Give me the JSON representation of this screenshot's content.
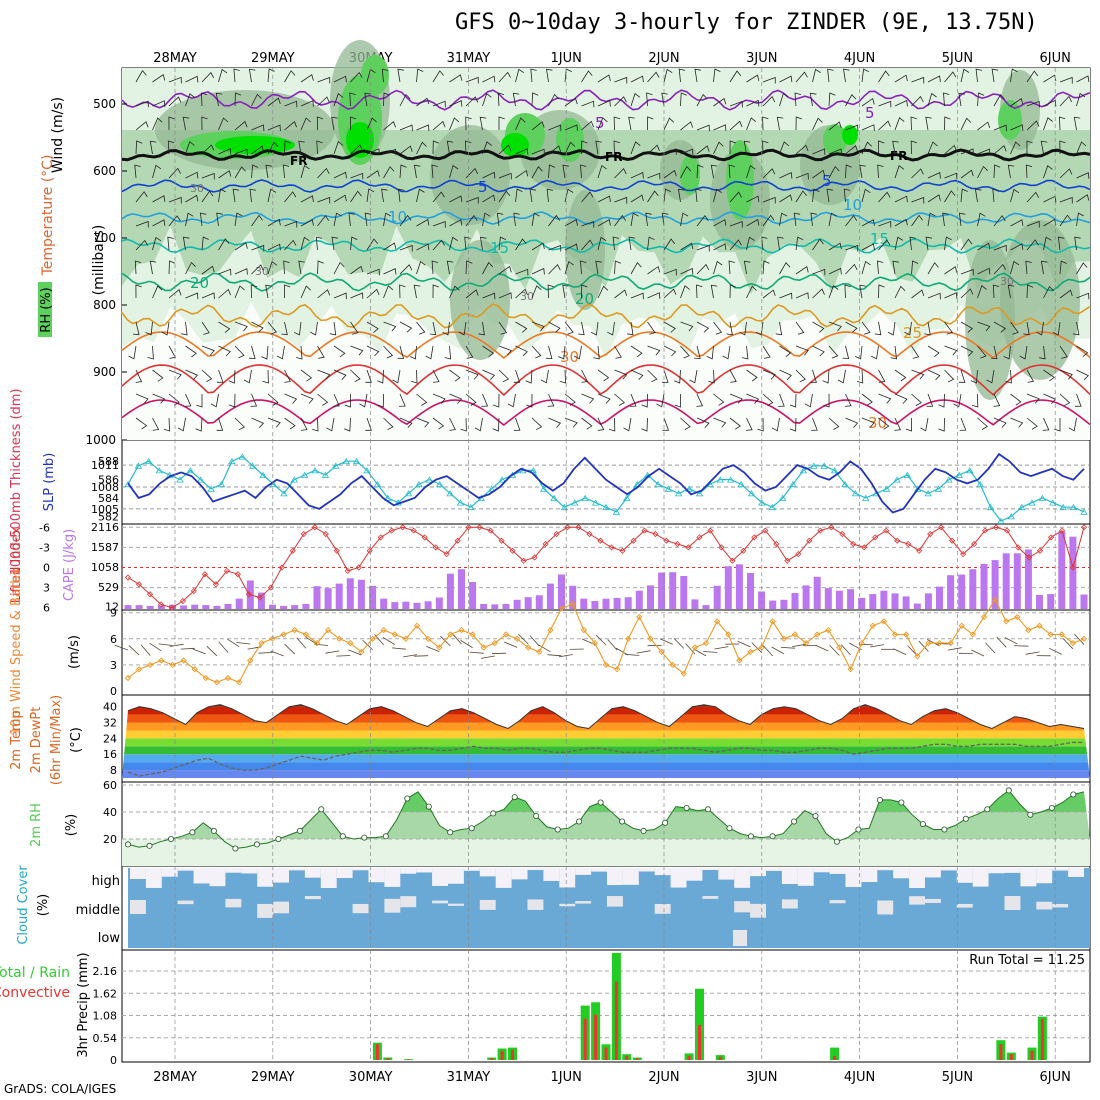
{
  "title": "GFS 0~10day 3-hourly for ZINDER (9E, 13.75N)",
  "credit": "GrADS: COLA/IGES",
  "colors": {
    "rh_light": "#e3f3e3",
    "rh_mid": "#b4d7b4",
    "rh_dark": "#93b893",
    "rh_green": "#5ed05e",
    "rh_bright": "#00e000",
    "thickness": "#22bbcc",
    "slp": "#2233bb",
    "lifted_index": "#dd3333",
    "cape": "#bb77ee",
    "wind10m": "#ee9922",
    "barb": "#554433",
    "rh2m": "#55cc55",
    "cloud_blue": "#6aa9d6",
    "precip_total": "#22cc22",
    "precip_conv": "#ee3333",
    "axis_label_cyan": "#22aacc"
  },
  "time_axis": {
    "labels": [
      "28MAY",
      "29MAY",
      "30MAY",
      "31MAY",
      "1JUN",
      "2JUN",
      "3JUN",
      "4JUN",
      "5JUN",
      "6JUN"
    ]
  },
  "panels": {
    "upper_air": {
      "ylabel_rh": "RH (%)",
      "ylabel_temp": "Temperature (°C)",
      "ylabel_wind": "Wind (m/s)",
      "ylabel_units": "(millibars)",
      "yticks": [
        "500",
        "600",
        "700",
        "800",
        "900",
        "1000"
      ],
      "fr_label": "FR",
      "isotherm_labels": [
        "5",
        "10",
        "15",
        "20",
        "25",
        "30"
      ],
      "rh_labels": [
        "30",
        "50"
      ]
    },
    "thickness_slp": {
      "ylabel_thick": "1000-500mb Thickness (dm)",
      "ylabel_slp": "SLP (mb)",
      "left_ticks": [
        "588",
        "586",
        "584",
        "582"
      ],
      "right_ticks": [
        "1011",
        "1008",
        "1005"
      ]
    },
    "li_cape": {
      "ylabel_li": "Lifted Index",
      "ylabel_cape": "CAPE (J/kg)",
      "left_ticks": [
        "-6",
        "-3",
        "0",
        "3",
        "6"
      ],
      "right_ticks": [
        "2116",
        "1587",
        "1058",
        "529",
        "12"
      ]
    },
    "wind10m": {
      "ylabel": "10m Wind Speed & Barbs",
      "units": "(m/s)",
      "ticks": [
        "9",
        "6",
        "3",
        "0"
      ]
    },
    "temp2m": {
      "ylabel1": "2m Temp",
      "ylabel2": "2m DewPt",
      "ylabel3": "(6hr Min/Max)",
      "units": "(°C)",
      "ticks": [
        "40",
        "32",
        "24",
        "16",
        "8"
      ]
    },
    "rh2m": {
      "ylabel": "2m RH",
      "units": "(%)",
      "ticks": [
        "60",
        "40",
        "20"
      ]
    },
    "cloud": {
      "ylabel": "Cloud Cover",
      "units": "(%)",
      "levels": [
        "high",
        "middle",
        "low"
      ]
    },
    "precip": {
      "ylabel1": "3hr Precip (mm)",
      "legend_total": "Total / Rain",
      "legend_conv": "Convective",
      "run_total": "Run Total = 11.25",
      "ticks": [
        "2.16",
        "1.62",
        "1.08",
        "0.54",
        "0"
      ]
    }
  },
  "chart_data": [
    {
      "type": "line",
      "title": "1000-500mb Thickness / SLP",
      "series": [
        {
          "name": "1000-500mb Thickness (dm)",
          "values": [
            585.5,
            587.5,
            588,
            587,
            586.5,
            586,
            587,
            586,
            585,
            585.5,
            588,
            588.5,
            587.5,
            586.5,
            585.5,
            584.5,
            586,
            586.5,
            587,
            586.5,
            587.5,
            588,
            588,
            587,
            585.5,
            584,
            583.5,
            584.5,
            585.5,
            586,
            585.5,
            584.5,
            583.5,
            583,
            584,
            585,
            586,
            586.5,
            587,
            587,
            585,
            584,
            583,
            583.5,
            584,
            583.5,
            583,
            582.5,
            584,
            585.5,
            586.5,
            585.5,
            585,
            584.5,
            585,
            584.5,
            585.5,
            586,
            586,
            585.5,
            584.5,
            583.5,
            583,
            584,
            585.5,
            587,
            587.5,
            587.5,
            587,
            585.5,
            584.5,
            584,
            584.5,
            585,
            586,
            586.5,
            585,
            584.5,
            585,
            586,
            586.5,
            587,
            585.5,
            583,
            581.5,
            582,
            583,
            583.5,
            584,
            583.5,
            583,
            583,
            582.5
          ]
        },
        {
          "name": "SLP (mb)",
          "values": [
            1008.5,
            1006.5,
            1007,
            1008.5,
            1009.5,
            1010,
            1009.5,
            1008,
            1006,
            1006.5,
            1007,
            1007.5,
            1006.5,
            1008,
            1009,
            1008.5,
            1007,
            1005.5,
            1005,
            1006,
            1007,
            1008.5,
            1009.5,
            1008,
            1006.5,
            1005.5,
            1006,
            1006.5,
            1008,
            1009,
            1009.5,
            1008.5,
            1007.5,
            1006.5,
            1007,
            1008,
            1009.5,
            1010.5,
            1010,
            1008.5,
            1007.5,
            1008.5,
            1010.5,
            1012,
            1010.5,
            1009,
            1008,
            1007,
            1008,
            1009.5,
            1010.5,
            1009.5,
            1008.5,
            1007,
            1007.5,
            1009,
            1010.5,
            1011,
            1010,
            1008.5,
            1007.5,
            1008,
            1009.5,
            1011,
            1010.5,
            1009.5,
            1009,
            1010,
            1011.5,
            1010.5,
            1008.5,
            1006,
            1004.5,
            1005,
            1007,
            1009,
            1010.5,
            1010,
            1009,
            1008.5,
            1009,
            1010.5,
            1012.5,
            1011.5,
            1010,
            1009.5,
            1010,
            1010.5,
            1009.5,
            1009,
            1010.5
          ]
        }
      ]
    },
    {
      "type": "bar",
      "title": "CAPE (J/kg) and Lifted Index",
      "series": [
        {
          "name": "CAPE (J/kg)",
          "values": [
            50,
            50,
            30,
            40,
            60,
            40,
            60,
            50,
            30,
            80,
            220,
            700,
            380,
            60,
            30,
            50,
            80,
            550,
            500,
            620,
            760,
            720,
            560,
            220,
            130,
            140,
            110,
            150,
            250,
            880,
            1000,
            660,
            80,
            70,
            80,
            190,
            260,
            310,
            620,
            860,
            560,
            220,
            160,
            220,
            240,
            260,
            430,
            570,
            910,
            920,
            820,
            200,
            50,
            560,
            1080,
            1130,
            900,
            410,
            170,
            190,
            370,
            570,
            800,
            500,
            430,
            470,
            240,
            340,
            430,
            360,
            280,
            90,
            360,
            540,
            840,
            860,
            1000,
            1140,
            1240,
            1420,
            1420,
            1520,
            320,
            340,
            2000,
            1860,
            330
          ]
        },
        {
          "name": "Lifted Index",
          "values": [
            1.5,
            2.5,
            4,
            5.5,
            6,
            5,
            3.5,
            1,
            2.5,
            0.5,
            1,
            4,
            4.5,
            3,
            0,
            -2.5,
            -5,
            -6,
            -5,
            -2.5,
            0.5,
            0,
            -2.5,
            -4.5,
            -5.5,
            -6,
            -5.5,
            -4.5,
            -3,
            -2,
            -4,
            -6,
            -6,
            -5.5,
            -4,
            -2.5,
            -1,
            -1.5,
            -3.5,
            -5,
            -6,
            -6,
            -5,
            -4,
            -3,
            -2.5,
            -4,
            -5.5,
            -5,
            -4,
            -3.5,
            -3,
            -4.5,
            -5.5,
            -3,
            -1,
            -2.5,
            -4.5,
            -5.5,
            -3.5,
            -1,
            -2,
            -4,
            -5.5,
            -6,
            -5,
            -3.5,
            -3,
            -4.5,
            -5.5,
            -4,
            -3.5,
            -2.5,
            -5,
            -6,
            -4,
            -2,
            -3.5,
            -5.5,
            -6,
            -5.5,
            -3,
            -1.5,
            -2.5,
            -4.5,
            -5.5,
            0,
            -6
          ]
        }
      ]
    },
    {
      "type": "line",
      "title": "10m Wind Speed (m/s)",
      "values": [
        1.5,
        2.5,
        3,
        3.5,
        3,
        3.5,
        2.5,
        1.5,
        1,
        1.5,
        1,
        3.5,
        5.5,
        6,
        6.5,
        7,
        6.5,
        5.5,
        7,
        6,
        5.5,
        4.5,
        6,
        7,
        6.5,
        6,
        7.5,
        6,
        5,
        6.5,
        7,
        6.5,
        5,
        5.5,
        6.5,
        6,
        5,
        4.5,
        7,
        9.5,
        10,
        7,
        5.5,
        3,
        2.5,
        6,
        8.5,
        6,
        4.5,
        3,
        2,
        5,
        5.5,
        8,
        6.5,
        3.5,
        4.5,
        5,
        8,
        6,
        6.5,
        5.5,
        6.5,
        7,
        5,
        2.5,
        5.5,
        7.5,
        8,
        6.5,
        6.5,
        4,
        5.5,
        5.5,
        5.5,
        7.5,
        6.5,
        8.5,
        10.5,
        8,
        8.5,
        7,
        7.5,
        6.5,
        6.5,
        5.5,
        6
      ]
    },
    {
      "type": "area",
      "title": "2m Temp / 2m DewPt (°C)",
      "series": [
        {
          "name": "2m Temp",
          "values": [
            38,
            40,
            39,
            37,
            34,
            31,
            37,
            40,
            41,
            39,
            36,
            33,
            32,
            36,
            40,
            41,
            39,
            36,
            33,
            31,
            35,
            39,
            40,
            38,
            35,
            32,
            30,
            34,
            38,
            39,
            37,
            34,
            31,
            29,
            33,
            38,
            40,
            37,
            33,
            30,
            29,
            34,
            39,
            40,
            38,
            35,
            32,
            30,
            35,
            40,
            41,
            40,
            36,
            33,
            31,
            36,
            39,
            40,
            39,
            36,
            33,
            31,
            34,
            39,
            41,
            39,
            36,
            33,
            31,
            35,
            38,
            39,
            37,
            34,
            31,
            29,
            32,
            35,
            34,
            32,
            30,
            31,
            30,
            29
          ]
        },
        {
          "name": "2m DewPt",
          "values": [
            7,
            5,
            6,
            7,
            9,
            11,
            13,
            14,
            11,
            9,
            8,
            8,
            9,
            11,
            13,
            15,
            14,
            13,
            15,
            16,
            17,
            18,
            18,
            17,
            18,
            19,
            19,
            18,
            18,
            19,
            20,
            19,
            19,
            18,
            19,
            19,
            18,
            17,
            17,
            18,
            19,
            19,
            18,
            17,
            17,
            17,
            18,
            19,
            19,
            19,
            18,
            17,
            18,
            19,
            19,
            18,
            18,
            17,
            17,
            18,
            19,
            19,
            18,
            16,
            17,
            18,
            19,
            19,
            19,
            20,
            21,
            21,
            20,
            20,
            21,
            21,
            21,
            21,
            20,
            20,
            20,
            21,
            22,
            22
          ]
        }
      ]
    },
    {
      "type": "area",
      "title": "2m RH (%)",
      "values": [
        16,
        14,
        15,
        18,
        20,
        22,
        25,
        32,
        26,
        18,
        13,
        14,
        16,
        17,
        20,
        23,
        26,
        34,
        42,
        32,
        22,
        20,
        21,
        21,
        22,
        34,
        50,
        55,
        44,
        30,
        25,
        27,
        28,
        33,
        39,
        42,
        51,
        48,
        37,
        29,
        27,
        28,
        33,
        44,
        47,
        40,
        33,
        28,
        26,
        27,
        32,
        44,
        43,
        41,
        42,
        35,
        28,
        24,
        22,
        21,
        22,
        24,
        33,
        41,
        37,
        24,
        18,
        21,
        27,
        28,
        49,
        49,
        47,
        38,
        31,
        27,
        27,
        30,
        35,
        38,
        42,
        50,
        56,
        46,
        38,
        40,
        43,
        47,
        53,
        55
      ]
    },
    {
      "type": "bar",
      "title": "3hr Precip (mm)",
      "series": [
        {
          "name": "Total / Rain",
          "values": [
            0,
            0,
            0,
            0,
            0,
            0,
            0,
            0,
            0,
            0,
            0,
            0,
            0,
            0,
            0,
            0,
            0,
            0,
            0,
            0,
            0,
            0,
            0,
            0,
            0.42,
            0.06,
            0,
            0.02,
            0,
            0,
            0,
            0,
            0,
            0,
            0,
            0.06,
            0.28,
            0.3,
            0,
            0,
            0,
            0,
            0,
            0,
            1.32,
            1.4,
            0.38,
            2.6,
            0.14,
            0.06,
            0,
            0,
            0,
            0,
            0.16,
            1.73,
            0,
            0.12,
            0,
            0,
            0,
            0,
            0,
            0,
            0,
            0,
            0,
            0,
            0.3,
            0,
            0,
            0,
            0,
            0,
            0,
            0,
            0,
            0,
            0,
            0,
            0,
            0,
            0,
            0,
            0.48,
            0.18,
            0,
            0.3,
            1.05,
            0,
            0,
            0,
            0
          ]
        },
        {
          "name": "Convective",
          "values": [
            0,
            0,
            0,
            0,
            0,
            0,
            0,
            0,
            0,
            0,
            0,
            0,
            0,
            0,
            0,
            0,
            0,
            0,
            0,
            0,
            0,
            0,
            0,
            0,
            0.38,
            0.04,
            0,
            0.02,
            0,
            0,
            0,
            0,
            0,
            0,
            0,
            0.04,
            0.22,
            0.25,
            0,
            0,
            0,
            0,
            0,
            0,
            1.0,
            1.1,
            0.3,
            1.9,
            0.1,
            0.04,
            0,
            0,
            0,
            0,
            0.1,
            0.85,
            0,
            0.08,
            0,
            0,
            0,
            0,
            0,
            0,
            0,
            0,
            0,
            0,
            0.1,
            0,
            0,
            0,
            0,
            0,
            0,
            0,
            0,
            0,
            0,
            0,
            0,
            0,
            0,
            0,
            0.38,
            0.14,
            0,
            0.22,
            1.0,
            0,
            0,
            0,
            0
          ]
        }
      ],
      "ylim": [
        0,
        2.7
      ]
    }
  ]
}
